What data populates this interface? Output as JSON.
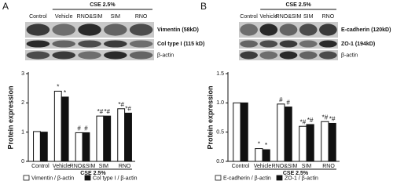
{
  "chart_data": [
    {
      "type": "bar",
      "panel": "A",
      "blot": {
        "group_label": "CSE 2.5%",
        "lanes": [
          "Control",
          "Vehicle",
          "RNO&SIM",
          "SIM",
          "RNO"
        ],
        "bands": [
          "Vimentin (58kD)",
          "Col type I (115 kD)",
          "β-actin"
        ]
      },
      "y_label": "Protein expression",
      "x_group_label": "CSE 2.5%",
      "categories": [
        "Control",
        "Vehicle",
        "RNO&SIM",
        "SIM",
        "RNO"
      ],
      "series": [
        {
          "name": "Vimentin / β-actin",
          "color": "#ffffff",
          "values": [
            1.02,
            2.4,
            0.98,
            1.55,
            1.8
          ],
          "markers": [
            null,
            "*",
            "#",
            "*#",
            "*#"
          ]
        },
        {
          "name": "Col type I / β-actin",
          "color": "#111111",
          "values": [
            1.0,
            2.2,
            0.98,
            1.55,
            1.65
          ],
          "markers": [
            null,
            "*",
            "#",
            "*#",
            "*#"
          ]
        }
      ],
      "ylim": [
        0,
        3
      ],
      "yticks": [
        0,
        1,
        2,
        3
      ]
    },
    {
      "type": "bar",
      "panel": "B",
      "blot": {
        "group_label": "CSE 2.5%",
        "lanes": [
          "Control",
          "Vehicle",
          "RNO&SIM",
          "SIM",
          "RNO"
        ],
        "bands": [
          "E-cadherin (120kD)",
          "ZO-1 (194kD)",
          "β-actin"
        ]
      },
      "y_label": "Protein expression",
      "x_group_label": "CSE 2.5%",
      "categories": [
        "Control",
        "Vehicle",
        "RNO&SIM",
        "SIM",
        "RNO"
      ],
      "series": [
        {
          "name": "E-cadherin / β-actin",
          "color": "#ffffff",
          "values": [
            1.0,
            0.22,
            0.98,
            0.6,
            0.68
          ],
          "markers": [
            null,
            "*",
            "#",
            "*#",
            "*#"
          ]
        },
        {
          "name": "ZO-1 / β-actin",
          "color": "#111111",
          "values": [
            1.0,
            0.2,
            0.93,
            0.63,
            0.65
          ],
          "markers": [
            null,
            "*",
            "#",
            "*#",
            "*#"
          ]
        }
      ],
      "ylim": [
        0,
        1.5
      ],
      "yticks": [
        {
          "value": 0,
          "label": "0.0"
        },
        0.5,
        {
          "value": 1,
          "label": "1.0"
        },
        1.5
      ]
    }
  ]
}
